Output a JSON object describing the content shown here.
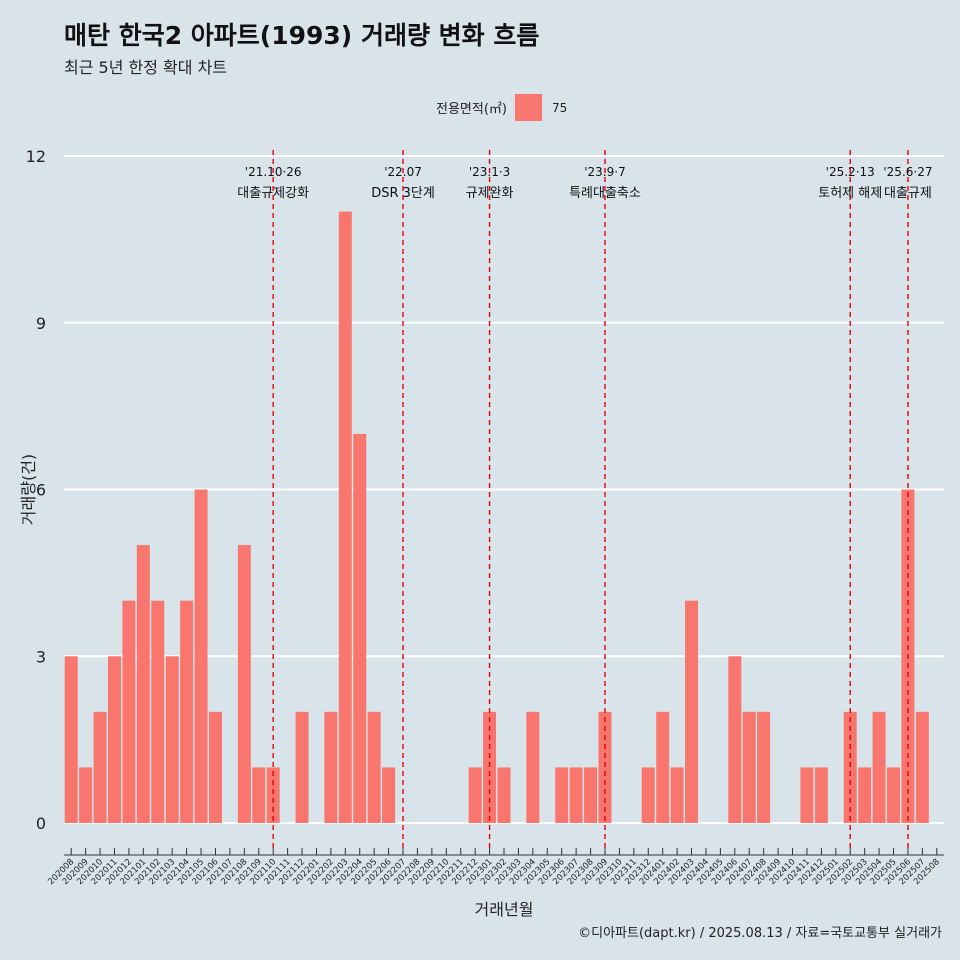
{
  "header": {
    "title": "매탄 한국2 아파트(1993) 거래량 변화 흐름",
    "subtitle": "최근 5년 한정 확대 차트"
  },
  "legend": {
    "title": "전용면적(㎡)",
    "value": "75",
    "color": "#f8766d"
  },
  "caption": "©디아파트(dapt.kr) / 2025.08.13 / 자료=국토교통부 실거래가",
  "chart_data": {
    "type": "bar",
    "xlabel": "거래년월",
    "ylabel": "거래량(건)",
    "ylim": [
      0,
      12
    ],
    "yticks": [
      0,
      3,
      6,
      9,
      12
    ],
    "bar_color": "#f8766d",
    "grid": "horizontal major lines",
    "categories": [
      "202008",
      "202009",
      "202010",
      "202011",
      "202012",
      "202101",
      "202102",
      "202103",
      "202104",
      "202105",
      "202106",
      "202107",
      "202108",
      "202109",
      "202110",
      "202111",
      "202112",
      "202201",
      "202202",
      "202203",
      "202204",
      "202205",
      "202206",
      "202207",
      "202208",
      "202209",
      "202210",
      "202211",
      "202212",
      "202301",
      "202302",
      "202303",
      "202304",
      "202305",
      "202306",
      "202307",
      "202308",
      "202309",
      "202310",
      "202311",
      "202312",
      "202401",
      "202402",
      "202403",
      "202404",
      "202405",
      "202406",
      "202407",
      "202408",
      "202409",
      "202410",
      "202411",
      "202412",
      "202501",
      "202502",
      "202503",
      "202504",
      "202505",
      "202506",
      "202507",
      "202508"
    ],
    "series": [
      {
        "name": "75",
        "values": [
          3,
          1,
          2,
          3,
          4,
          5,
          4,
          3,
          4,
          6,
          2,
          0,
          5,
          1,
          1,
          0,
          2,
          0,
          2,
          11,
          7,
          2,
          1,
          0,
          0,
          0,
          0,
          0,
          1,
          2,
          1,
          0,
          2,
          0,
          1,
          1,
          1,
          2,
          0,
          0,
          1,
          2,
          1,
          4,
          0,
          0,
          3,
          2,
          2,
          0,
          0,
          1,
          1,
          0,
          2,
          1,
          2,
          1,
          6,
          2,
          0
        ]
      }
    ],
    "annotations": [
      {
        "category": "202110",
        "date": "'21.10·26",
        "label": "대출규제강화"
      },
      {
        "category": "202207",
        "date": "'22.07",
        "label": "DSR 3단계"
      },
      {
        "category": "202301",
        "date": "'23.1·3",
        "label": "규제완화"
      },
      {
        "category": "202309",
        "date": "'23.9·7",
        "label": "특례대출축소"
      },
      {
        "category": "202502",
        "date": "'25.2·13",
        "label": "토허제 해제"
      },
      {
        "category": "202506",
        "date": "'25.6·27",
        "label": "대출규제"
      }
    ]
  }
}
